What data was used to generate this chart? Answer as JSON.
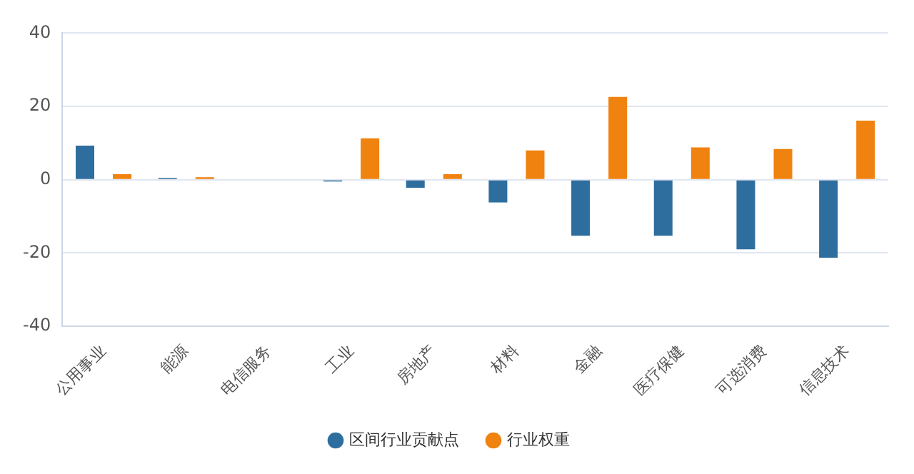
{
  "chart_data": {
    "type": "bar",
    "categories": [
      "公用事业",
      "能源",
      "电信服务",
      "工业",
      "房地产",
      "材料",
      "金融",
      "医疗保健",
      "可选消费",
      "信息技术"
    ],
    "series": [
      {
        "name": "区间行业贡献点",
        "color": "#2e6e9e",
        "values": [
          9.3,
          0.5,
          0,
          -0.5,
          -2.2,
          -6.2,
          -15.3,
          -15.3,
          -19,
          -21.3
        ]
      },
      {
        "name": "行业权重",
        "color": "#f0820f",
        "values": [
          1.5,
          0.7,
          0,
          11.3,
          1.5,
          8,
          22.6,
          8.8,
          8.4,
          16.1
        ]
      }
    ],
    "ylim": [
      -40,
      40
    ],
    "yticks": [
      -40,
      -20,
      0,
      20,
      40
    ],
    "grid": "y",
    "legend": "bottom"
  }
}
